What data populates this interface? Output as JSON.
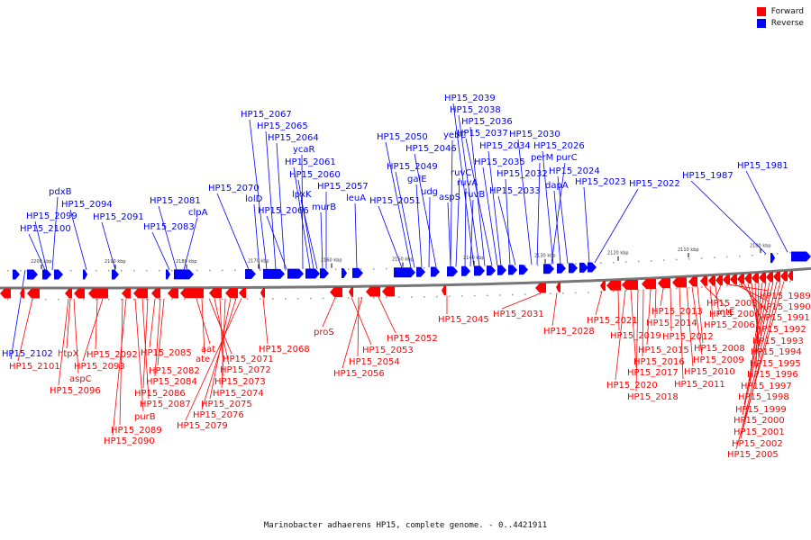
{
  "legend": {
    "forward": {
      "label": "Forward",
      "color": "#ff0000"
    },
    "reverse": {
      "label": "Reverse",
      "color": "#0000ff"
    }
  },
  "caption": "Marinobacter adhaerens HP15, complete genome. - 0..4421911",
  "ticks": [
    "2200 kbp",
    "2190 kbp",
    "2180 kbp",
    "2170 kbp",
    "2160 kbp",
    "2150 kbp",
    "2140 kbp",
    "2130 kbp",
    "2120 kbp",
    "2110 kbp",
    "2100 kbp"
  ],
  "reverse_labels": [
    "HP15_2100",
    "HP15_2099",
    "pdxB",
    "HP15_2094",
    "HP15_2091",
    "HP15_2083",
    "HP15_2081",
    "clpA",
    "HP15_2070",
    "lolD",
    "HP15_2067",
    "HP15_2065",
    "HP15_2064",
    "ycaR",
    "HP15_2066",
    "HP15_2061",
    "HP15_2060",
    "lpxK",
    "murB",
    "HP15_2057",
    "leuA",
    "HP15_2051",
    "HP15_2050",
    "HP15_2049",
    "galE",
    "udg",
    "HP15_2046",
    "yebC",
    "ruvC",
    "aspS",
    "ruvA",
    "ruvB",
    "HP15_2039",
    "HP15_2038",
    "HP15_2036",
    "HP15_2037",
    "HP15_2035",
    "HP15_2034",
    "HP15_2032",
    "HP15_2033",
    "HP15_2030",
    "perM",
    "purC",
    "HP15_2026",
    "dapA",
    "HP15_2024",
    "HP15_2023",
    "HP15_2022",
    "HP15_1987",
    "HP15_1981",
    "HP15_2102"
  ],
  "forward_labels": [
    "HP15_2101",
    "htpX",
    "aspC",
    "HP15_2096",
    "HP15_2092",
    "HP15_2093",
    "HP15_2089",
    "HP15_2090",
    "purB",
    "HP15_2087",
    "HP15_2086",
    "HP15_2085",
    "HP15_2084",
    "HP15_2082",
    "aat",
    "ate",
    "HP15_2071",
    "HP15_2072",
    "HP15_2073",
    "HP15_2074",
    "HP15_2075",
    "HP15_2076",
    "HP15_2079",
    "HP15_2068",
    "proS",
    "HP15_2053",
    "HP15_2054",
    "HP15_2056",
    "HP15_2052",
    "HP15_2045",
    "HP15_2031",
    "HP15_2028",
    "HP15_2021",
    "HP15_2019",
    "HP15_2020",
    "HP15_2017",
    "HP15_2018",
    "HP15_2016",
    "HP15_2015",
    "HP15_2014",
    "HP15_2013",
    "HP15_2012",
    "HP15_2011",
    "HP15_2010",
    "HP15_2009",
    "HP15_2008",
    "intE",
    "HP15_2006",
    "HP15_2004",
    "HP15_2003",
    "HP15_1989",
    "HP15_1990",
    "HP15_1991",
    "HP15_1992",
    "HP15_1993",
    "HP15_1994",
    "HP15_1995",
    "HP15_1996",
    "HP15_1997",
    "HP15_1998",
    "HP15_1999",
    "HP15_2000",
    "HP15_2001",
    "HP15_2002",
    "HP15_2005"
  ]
}
